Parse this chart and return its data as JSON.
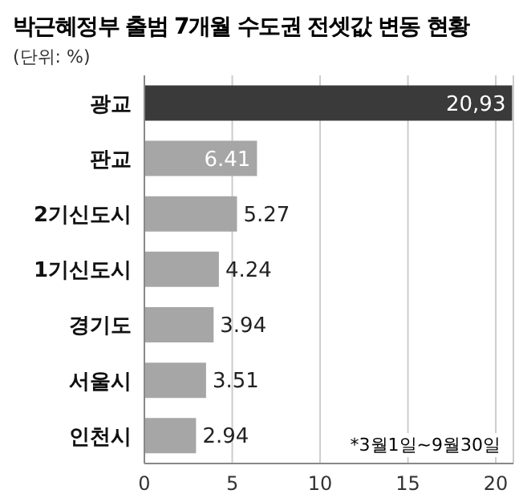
{
  "chart_data": {
    "type": "bar",
    "orientation": "horizontal",
    "title": "박근혜정부 출범 7개월 수도권 전셋값 변동 현황",
    "subtitle": "(단위: %)",
    "categories": [
      "광교",
      "판교",
      "2기신도시",
      "1기신도시",
      "경기도",
      "서울시",
      "인천시"
    ],
    "values": [
      20.93,
      6.41,
      5.27,
      4.24,
      3.94,
      3.51,
      2.94
    ],
    "colors": [
      "#3a3a3a",
      "#a6a6a6",
      "#a6a6a6",
      "#a6a6a6",
      "#a6a6a6",
      "#a6a6a6",
      "#a6a6a6"
    ],
    "value_labels": [
      "20,93",
      "6.41",
      "5.27",
      "4.24",
      "3.94",
      "3.51",
      "2.94"
    ],
    "xlim": [
      0,
      21
    ],
    "xticks": [
      0,
      5,
      10,
      15,
      20
    ],
    "grid": "x",
    "annotations": [
      {
        "text": "*3월1일~9월30일"
      }
    ]
  }
}
